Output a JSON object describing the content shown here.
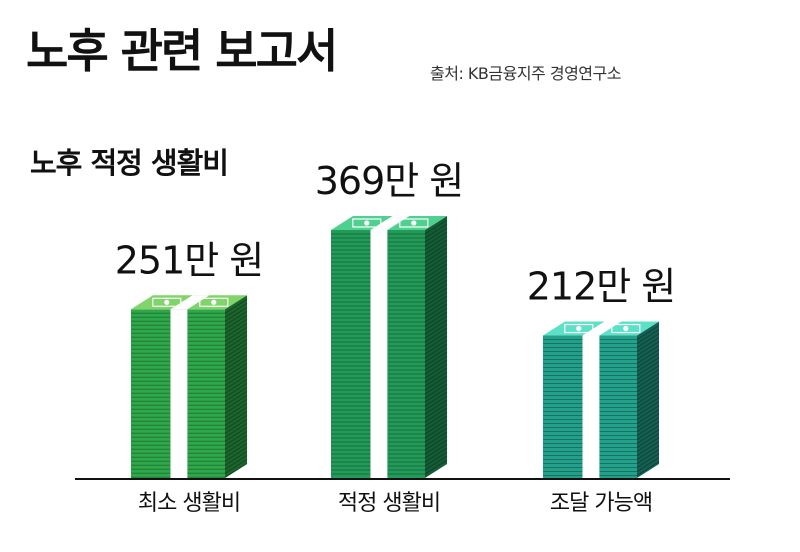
{
  "header": {
    "title": "노후 관련 보고서",
    "source": "출처: KB금융지주 경영연구소"
  },
  "chart_data": {
    "type": "bar",
    "title": "노후 적정 생활비",
    "categories": [
      "최소 생활비",
      "적정 생활비",
      "조달 가능액"
    ],
    "values": [
      251,
      369,
      212
    ],
    "value_labels": [
      "251만 원",
      "369만 원",
      "212만 원"
    ],
    "unit": "만 원",
    "colors": [
      "#2ea84a",
      "#229a58",
      "#23a08a"
    ],
    "top_colors": [
      "#7fd46a",
      "#4fd08e",
      "#5ce0c8"
    ],
    "grid": false,
    "legend": "none"
  }
}
